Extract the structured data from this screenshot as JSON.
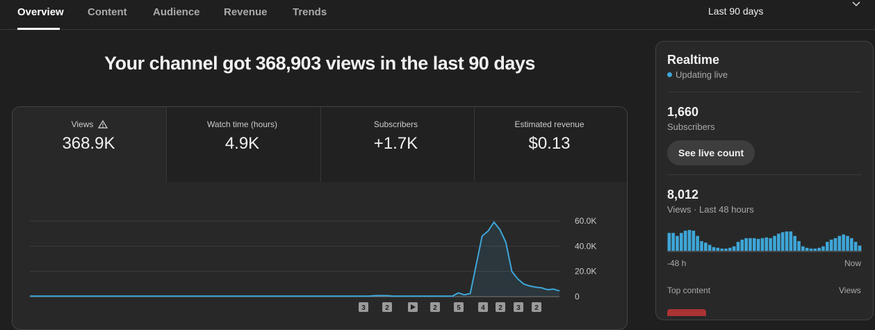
{
  "tabs": [
    "Overview",
    "Content",
    "Audience",
    "Revenue",
    "Trends"
  ],
  "date_range": "Last 90 days",
  "headline": "Your channel got 368,903 views in the last 90 days",
  "metrics": [
    {
      "label": "Views",
      "value": "368.9K"
    },
    {
      "label": "Watch time (hours)",
      "value": "4.9K"
    },
    {
      "label": "Subscribers",
      "value": "+1.7K"
    },
    {
      "label": "Estimated revenue",
      "value": "$0.13"
    }
  ],
  "chart_data": {
    "type": "line",
    "color": "#3ea6d8",
    "values": [
      400,
      400,
      400,
      400,
      400,
      400,
      400,
      400,
      400,
      400,
      400,
      400,
      400,
      400,
      400,
      400,
      400,
      400,
      400,
      400,
      400,
      400,
      400,
      400,
      400,
      400,
      400,
      400,
      400,
      400,
      400,
      400,
      400,
      400,
      400,
      400,
      400,
      400,
      400,
      400,
      400,
      400,
      400,
      400,
      400,
      400,
      400,
      400,
      400,
      400,
      400,
      400,
      400,
      400,
      400,
      400,
      400,
      400,
      800,
      800,
      800,
      400,
      400,
      400,
      400,
      400,
      400,
      400,
      400,
      400,
      400,
      400,
      3000,
      1500,
      2500,
      25000,
      48000,
      52000,
      59000,
      53000,
      43000,
      20000,
      14000,
      10000,
      8500,
      7500,
      7000,
      5500,
      6000,
      4500
    ],
    "ylim": [
      0,
      60000
    ],
    "yticks": [
      0,
      {
        "value": 20000,
        "label": "20.0K"
      },
      {
        "value": 40000,
        "label": "40.0K"
      },
      {
        "value": 60000,
        "label": "60.0K"
      }
    ],
    "grid": true,
    "markers": [
      "3",
      "2",
      "2",
      "5",
      "4",
      "2",
      "3",
      "2"
    ]
  },
  "realtime": {
    "title": "Realtime",
    "status": "Updating live",
    "subscribers": "1,660",
    "subscribers_label": "Subscribers",
    "button": "See live count",
    "views": "8,012",
    "views_label": "Views · Last 48 hours",
    "chart": {
      "type": "bar",
      "color": "#3ea6d8",
      "values": [
        168,
        168,
        140,
        168,
        189,
        196,
        189,
        140,
        91,
        77,
        56,
        35,
        28,
        21,
        21,
        28,
        42,
        84,
        105,
        119,
        119,
        119,
        112,
        119,
        126,
        119,
        140,
        161,
        175,
        182,
        182,
        140,
        91,
        42,
        28,
        21,
        21,
        28,
        42,
        84,
        105,
        119,
        140,
        154,
        140,
        119,
        84,
        49
      ],
      "x_start": "-48 h",
      "x_end": "Now"
    },
    "top_content": "Top content",
    "top_content_metric": "Views"
  }
}
